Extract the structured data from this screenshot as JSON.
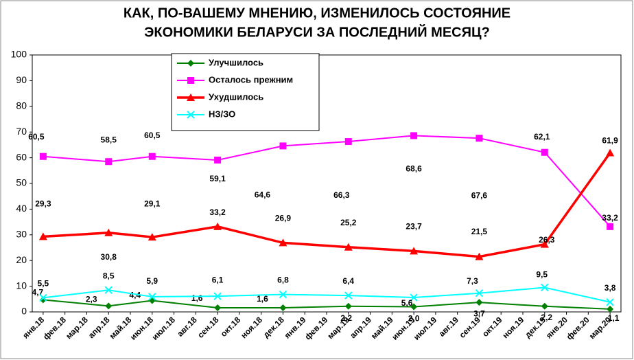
{
  "chart_data": {
    "type": "line",
    "title": [
      "КАК, ПО-ВАШЕМУ МНЕНИЮ, ИЗМЕНИЛОСЬ СОСТОЯНИЕ",
      "ЭКОНОМИКИ БЕЛАРУСИ ЗА ПОСЛЕДНИЙ МЕСЯЦ?"
    ],
    "categories": [
      "янв.18",
      "фев.18",
      "мар.18",
      "апр.18",
      "май.18",
      "июн.18",
      "июл.18",
      "авг.18",
      "сен.18",
      "окт.18",
      "ноя.18",
      "дек.18",
      "янв.19",
      "фев.19",
      "мар.19",
      "апр.19",
      "май.19",
      "июн.19",
      "июл.19",
      "авг.19",
      "сен.19",
      "окт.19",
      "ноя.19",
      "дек.19",
      "янв.20",
      "фев.20",
      "мар.20"
    ],
    "x": [
      "янв.18",
      "апр.18",
      "июн.18",
      "сен.18",
      "дек.18",
      "мар.19",
      "июн.19",
      "сен.19",
      "дек.19",
      "мар.20"
    ],
    "series": [
      {
        "name": "Улучшилось",
        "color": "#008000",
        "marker": "diamond",
        "values": [
          4.7,
          2.3,
          4.4,
          1.6,
          1.6,
          2.2,
          2.0,
          3.7,
          2.2,
          1.1
        ],
        "value_labels": [
          "4,7",
          "2,3",
          "4,4",
          "1,6",
          "1,6",
          "2,2",
          "2,0",
          "3,7",
          "2,2",
          "1,1"
        ]
      },
      {
        "name": "Осталось прежним",
        "color": "#ff00ff",
        "marker": "square",
        "values": [
          60.5,
          58.5,
          60.5,
          59.1,
          64.6,
          66.3,
          68.6,
          67.6,
          62.1,
          33.2
        ],
        "value_labels": [
          "60,5",
          "58,5",
          "60,5",
          "59,1",
          "64,6",
          "66,3",
          "68,6",
          "67,6",
          "62,1",
          "33,2"
        ]
      },
      {
        "name": "Ухудшилось",
        "color": "#ff0000",
        "marker": "triangle",
        "values": [
          29.3,
          30.8,
          29.1,
          33.2,
          26.9,
          25.2,
          23.7,
          21.5,
          26.3,
          61.9
        ],
        "value_labels": [
          "29,3",
          "30,8",
          "29,1",
          "33,2",
          "26,9",
          "25,2",
          "23,7",
          "21,5",
          "26,3",
          "61,9"
        ]
      },
      {
        "name": "НЗ/ЗО",
        "color": "#00ffff",
        "marker": "x",
        "values": [
          5.5,
          8.5,
          5.9,
          6.1,
          6.8,
          6.4,
          5.6,
          7.3,
          9.5,
          3.8
        ],
        "value_labels": [
          "5,5",
          "8,5",
          "5,9",
          "6,1",
          "6,8",
          "6,4",
          "5,6",
          "7,3",
          "9,5",
          "3,8"
        ]
      }
    ],
    "ylim": [
      0,
      100
    ],
    "yticks": [
      0,
      10,
      20,
      30,
      40,
      50,
      60,
      70,
      80,
      90,
      100
    ],
    "grid": false
  }
}
